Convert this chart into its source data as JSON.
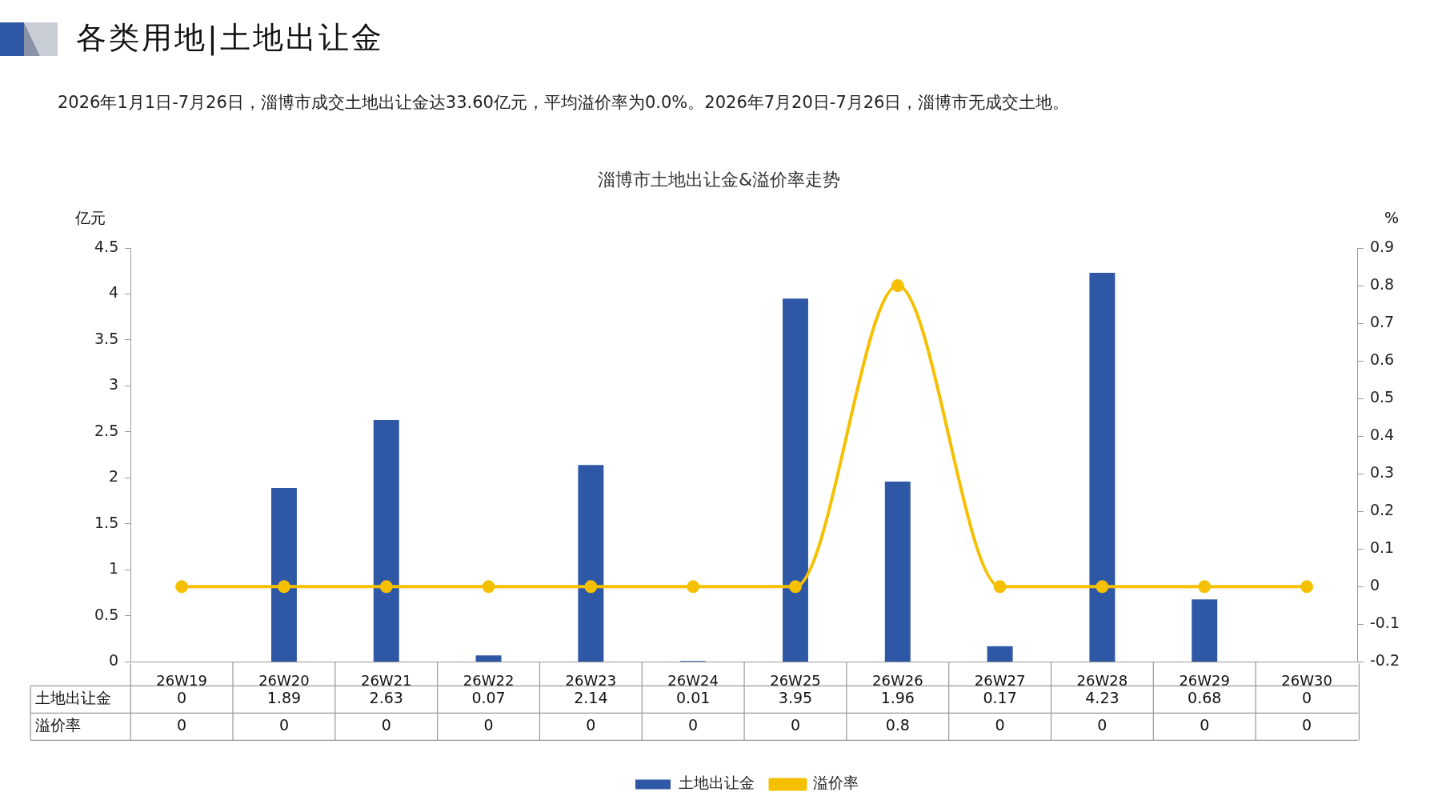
{
  "chart_data": {
    "type": "bar",
    "title": "各类用地|土地出让金",
    "subtitle": "2026年1月1日-7月26日，淄博市成交土地出让金达33.60亿元，平均溢价率为0.0%。2026年7月20日-7月26日，淄博市无成交土地。",
    "annotations": [
      "淄博市土地出让金&溢价率走势"
    ],
    "ylabel": "亿元",
    "y2label": "%",
    "categories": [
      "26W19",
      "26W20",
      "26W21",
      "26W22",
      "26W23",
      "26W24",
      "26W25",
      "26W26",
      "26W27",
      "26W28",
      "26W29",
      "26W30"
    ],
    "series": [
      {
        "name": "土地出让金",
        "type": "bar",
        "color": "#2e58a6",
        "values": [
          0,
          1.89,
          2.63,
          0.07,
          2.14,
          0.01,
          3.95,
          1.96,
          0.17,
          4.23,
          0.68,
          0
        ]
      },
      {
        "name": "溢价率",
        "type": "line",
        "axis": "y2",
        "color": "#f5c000",
        "values": [
          0,
          0,
          0,
          0,
          0,
          0,
          0,
          0.8,
          0,
          0,
          0,
          0
        ]
      }
    ],
    "ylim": [
      0,
      4.5
    ],
    "yticks": [
      0,
      0.5,
      1,
      1.5,
      2,
      2.5,
      3,
      3.5,
      4,
      4.5
    ],
    "y2lim": [
      -0.2,
      0.9
    ],
    "y2ticks": [
      -0.2,
      -0.1,
      0,
      0.1,
      0.2,
      0.3,
      0.4,
      0.5,
      0.6,
      0.7,
      0.8,
      0.9
    ],
    "grid": false,
    "legend": "bottom",
    "marker": "circle",
    "line_style": "solid",
    "data_labels": true
  }
}
